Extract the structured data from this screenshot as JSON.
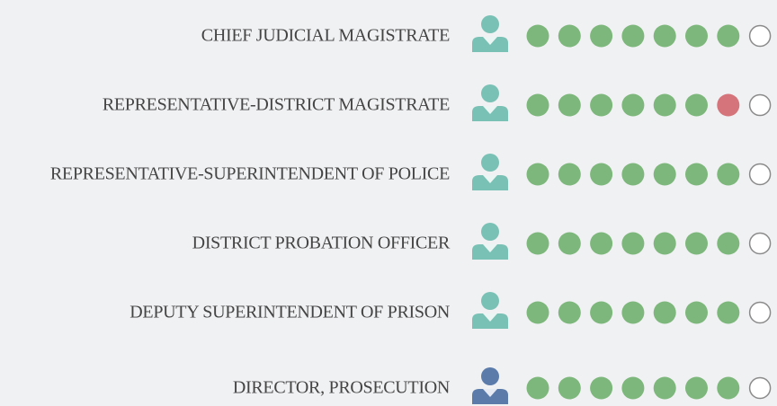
{
  "rows": [
    {
      "label": "CHIEF JUDICIAL MAGISTRATE",
      "icon_color": "#7ac1b5",
      "dots": [
        "#7db77b",
        "#7db77b",
        "#7db77b",
        "#7db77b",
        "#7db77b",
        "#7db77b",
        "#7db77b",
        "#ffffff"
      ]
    },
    {
      "label": "REPRESENTATIVE-DISTRICT MAGISTRATE",
      "icon_color": "#7ac1b5",
      "dots": [
        "#7db77b",
        "#7db77b",
        "#7db77b",
        "#7db77b",
        "#7db77b",
        "#7db77b",
        "#d5757b",
        "#ffffff"
      ]
    },
    {
      "label": "REPRESENTATIVE-SUPERINTENDENT OF POLICE",
      "icon_color": "#7ac1b5",
      "dots": [
        "#7db77b",
        "#7db77b",
        "#7db77b",
        "#7db77b",
        "#7db77b",
        "#7db77b",
        "#7db77b",
        "#ffffff"
      ]
    },
    {
      "label": "DISTRICT PROBATION OFFICER",
      "icon_color": "#7ac1b5",
      "dots": [
        "#7db77b",
        "#7db77b",
        "#7db77b",
        "#7db77b",
        "#7db77b",
        "#7db77b",
        "#7db77b",
        "#ffffff"
      ]
    },
    {
      "label": "DEPUTY SUPERINTENDENT OF PRISON",
      "icon_color": "#7ac1b5",
      "dots": [
        "#7db77b",
        "#7db77b",
        "#7db77b",
        "#7db77b",
        "#7db77b",
        "#7db77b",
        "#7db77b",
        "#ffffff"
      ]
    },
    {
      "label": "DIRECTOR, PROSECUTION",
      "icon_color": "#5b7bab",
      "dots": [
        "#7db77b",
        "#7db77b",
        "#7db77b",
        "#7db77b",
        "#7db77b",
        "#7db77b",
        "#7db77b",
        "#ffffff"
      ]
    }
  ]
}
